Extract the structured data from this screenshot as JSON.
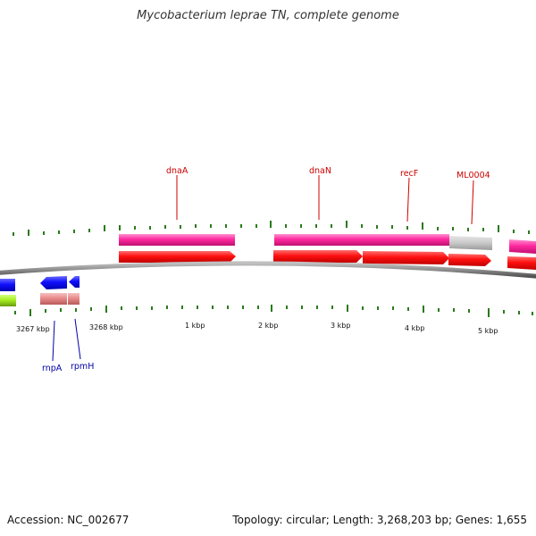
{
  "title": "Mycobacterium leprae TN, complete genome",
  "footer": {
    "accession": "Accession: NC_002677",
    "summary": "Topology: circular; Length: 3,268,203 bp; Genes: 1,655"
  },
  "colors": {
    "backbone": "#8a8a8a",
    "tick": "#2a7a1a",
    "cds_forward": "#ff1010",
    "cog_forward": "#ff2aa0",
    "cog_unassigned": "#c8c8c8",
    "cds_reverse": "#1010ff",
    "cds_reverse_rna": "#e88a8a",
    "misc_feature": "#a6ee20",
    "label_forward": "#cc0000",
    "label_reverse": "#0000aa"
  },
  "tick_labels": [
    "3267 kbp",
    "3268 kbp",
    "1 kbp",
    "2 kbp",
    "3 kbp",
    "4 kbp",
    "5 kbp"
  ],
  "gene_labels": {
    "forward": [
      "dnaA",
      "dnaN",
      "recF",
      "ML0004"
    ],
    "reverse": [
      "rnpA",
      "rpmH"
    ]
  }
}
